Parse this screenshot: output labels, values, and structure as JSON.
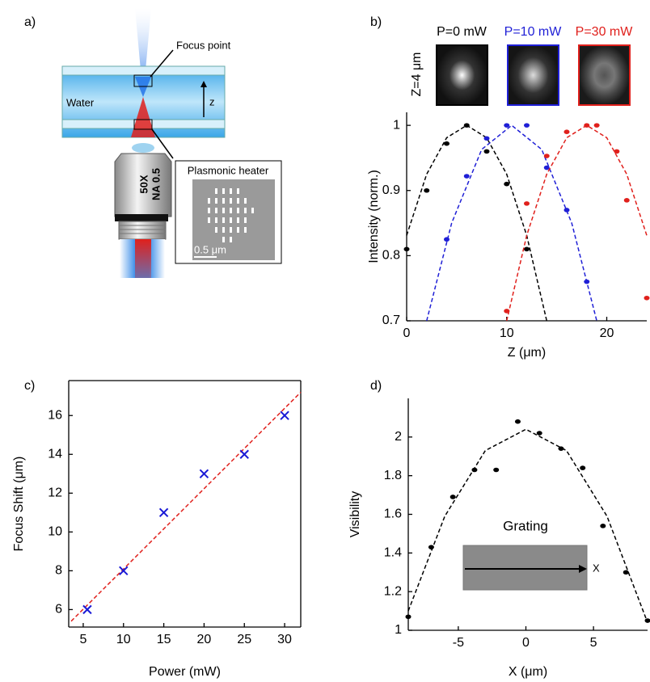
{
  "diagram": {
    "label": "a)",
    "focus_point": "Focus point",
    "water": "Water",
    "z": "z",
    "heater_title": "Plasmonic heater",
    "objective_mag": "50X",
    "objective_na": "NA 0.5",
    "scale_bar": "0.5 μm"
  },
  "chart_data": [
    {
      "type": "scatter",
      "label": "b)",
      "xlabel": "Z (μm)",
      "ylabel": "Intensity (norm.)",
      "annotation": "Z=4 μm",
      "xlim": [
        0,
        24
      ],
      "xticks": [
        0,
        10,
        20
      ],
      "ylim": [
        0.7,
        1.02
      ],
      "yticks": [
        0.7,
        0.8,
        0.9,
        1
      ],
      "box": false,
      "marker": "dot",
      "series": [
        {
          "name": "P=0 mW",
          "color": "#000000",
          "x": [
            0,
            2,
            4,
            6,
            8,
            10,
            12
          ],
          "values": [
            0.81,
            0.9,
            0.972,
            1.0,
            0.96,
            0.91,
            0.81
          ],
          "fit_x": [
            0,
            2,
            4,
            6,
            8,
            10,
            12,
            14
          ],
          "fit_values": [
            0.831,
            0.925,
            0.981,
            1.0,
            0.981,
            0.925,
            0.831,
            0.7
          ]
        },
        {
          "name": "P=10 mW",
          "color": "#1f1fd6",
          "x": [
            4,
            6,
            8,
            10,
            12,
            14,
            16,
            18
          ],
          "values": [
            0.825,
            0.922,
            0.98,
            1.0,
            1.0,
            0.935,
            0.87,
            0.76
          ],
          "fit_x": [
            2,
            4.5,
            7.5,
            10.5,
            13.5,
            16.5,
            19
          ],
          "fit_values": [
            0.7,
            0.85,
            0.963,
            1.0,
            0.963,
            0.85,
            0.7
          ]
        },
        {
          "name": "P=30 mW",
          "color": "#e0201c",
          "x": [
            10,
            12,
            14,
            16,
            18,
            19,
            21,
            22,
            24
          ],
          "values": [
            0.715,
            0.88,
            0.953,
            0.99,
            1.0,
            1.0,
            0.96,
            0.885,
            0.735
          ],
          "fit_x": [
            10,
            12,
            14,
            16,
            18,
            20,
            22,
            24
          ],
          "fit_values": [
            0.7,
            0.831,
            0.925,
            0.981,
            1.0,
            0.981,
            0.925,
            0.831
          ]
        }
      ]
    },
    {
      "type": "scatter",
      "label": "c)",
      "xlabel": "Power (mW)",
      "ylabel": "Focus Shift (μm)",
      "xlim": [
        3.2,
        32
      ],
      "xticks": [
        5,
        10,
        15,
        20,
        25,
        30
      ],
      "ylim": [
        5.1,
        17.8
      ],
      "yticks": [
        6,
        8,
        10,
        12,
        14,
        16
      ],
      "box": true,
      "marker": "x",
      "series": [
        {
          "color": "#1a1ad6",
          "x": [
            5.5,
            10,
            15,
            20,
            25,
            30
          ],
          "values": [
            6,
            8,
            11,
            13,
            14,
            16
          ],
          "fit_color": "#e0201c",
          "fit_x": [
            3.5,
            32
          ],
          "fit_values": [
            5.4,
            17.2
          ]
        }
      ]
    },
    {
      "type": "scatter",
      "label": "d)",
      "xlabel": "X (μm)",
      "ylabel": "Visibility",
      "annotation": "Grating",
      "inset_axis": "X",
      "xlim": [
        -8.7,
        9
      ],
      "xticks": [
        -5,
        0,
        5
      ],
      "ylim": [
        1,
        2.2
      ],
      "yticks": [
        1,
        1.2,
        1.4,
        1.6,
        1.8,
        2
      ],
      "box": false,
      "marker": "dot",
      "series": [
        {
          "color": "#000000",
          "x": [
            -8.7,
            -7,
            -5.4,
            -3.8,
            -2.2,
            -0.6,
            1,
            2.6,
            4.2,
            5.7,
            7.4,
            9
          ],
          "values": [
            1.07,
            1.43,
            1.69,
            1.83,
            1.83,
            2.08,
            2.02,
            1.94,
            1.84,
            1.54,
            1.3,
            1.05
          ],
          "fit_x": [
            -8.7,
            -6,
            -3,
            0,
            3,
            6,
            9
          ],
          "fit_values": [
            1.1,
            1.59,
            1.93,
            2.04,
            1.93,
            1.59,
            1.04
          ]
        }
      ]
    }
  ]
}
